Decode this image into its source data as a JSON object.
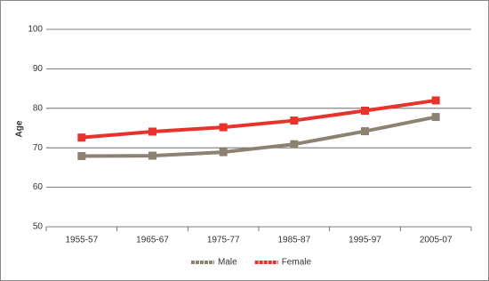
{
  "chart_data": {
    "type": "line",
    "y_label": "Age",
    "categories": [
      "1955-57",
      "1965-67",
      "1975-77",
      "1985-87",
      "1995-97",
      "2005-07"
    ],
    "series": [
      {
        "name": "Male",
        "color": "#8c8272",
        "values": [
          67.9,
          68.0,
          68.9,
          70.9,
          74.2,
          77.8
        ]
      },
      {
        "name": "Female",
        "color": "#e8322b",
        "values": [
          72.6,
          74.1,
          75.2,
          76.9,
          79.4,
          82.0
        ]
      }
    ],
    "ylim": [
      50,
      100
    ],
    "yticks": [
      50,
      60,
      70,
      80,
      90,
      100
    ],
    "grid": true
  }
}
